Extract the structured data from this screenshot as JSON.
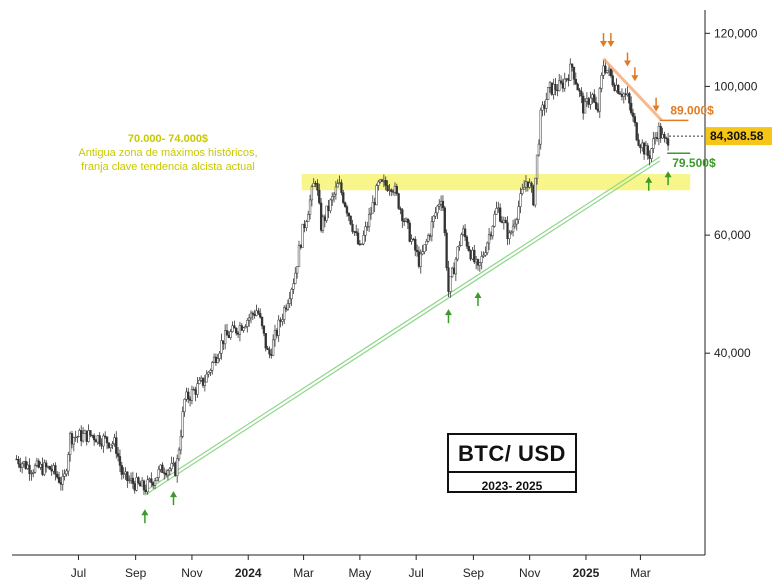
{
  "chart_data": {
    "type": "candlestick",
    "title": "BTC/ USD",
    "subtitle": "2023- 2025",
    "y_scale": "log",
    "ylim": [
      20000,
      130000
    ],
    "y_ticks": [
      {
        "value": 120000,
        "label": "120,000"
      },
      {
        "value": 100000,
        "label": "100,000"
      },
      {
        "value": 60000,
        "label": "60,000"
      },
      {
        "value": 40000,
        "label": "40,000"
      }
    ],
    "x_ticks": [
      {
        "date": "2023-07-01",
        "label": "Jul",
        "bold": false
      },
      {
        "date": "2023-09-01",
        "label": "Sep",
        "bold": false
      },
      {
        "date": "2023-11-01",
        "label": "Nov",
        "bold": false
      },
      {
        "date": "2024-01-01",
        "label": "2024",
        "bold": true
      },
      {
        "date": "2024-03-01",
        "label": "Mar",
        "bold": false
      },
      {
        "date": "2024-05-01",
        "label": "May",
        "bold": false
      },
      {
        "date": "2024-07-01",
        "label": "Jul",
        "bold": false
      },
      {
        "date": "2024-09-01",
        "label": "Sep",
        "bold": false
      },
      {
        "date": "2024-11-01",
        "label": "Nov",
        "bold": false
      },
      {
        "date": "2025-01-01",
        "label": "2025",
        "bold": true
      },
      {
        "date": "2025-03-01",
        "label": "Mar",
        "bold": false
      }
    ],
    "x_range": [
      "2023-04-20",
      "2025-05-10"
    ],
    "price_path": [
      [
        "2023-04-25",
        27800
      ],
      [
        "2023-05-10",
        27000
      ],
      [
        "2023-06-01",
        26900
      ],
      [
        "2023-06-15",
        25500
      ],
      [
        "2023-06-22",
        30000
      ],
      [
        "2023-07-15",
        30200
      ],
      [
        "2023-08-10",
        29300
      ],
      [
        "2023-08-18",
        26100
      ],
      [
        "2023-09-11",
        25100
      ],
      [
        "2023-10-01",
        27000
      ],
      [
        "2023-10-15",
        26800
      ],
      [
        "2023-10-24",
        34000
      ],
      [
        "2023-11-15",
        36500
      ],
      [
        "2023-12-05",
        42000
      ],
      [
        "2023-12-20",
        43500
      ],
      [
        "2024-01-11",
        46500
      ],
      [
        "2024-01-23",
        39500
      ],
      [
        "2024-02-10",
        47000
      ],
      [
        "2024-02-20",
        52000
      ],
      [
        "2024-02-28",
        60000
      ],
      [
        "2024-03-14",
        73000
      ],
      [
        "2024-03-20",
        62000
      ],
      [
        "2024-04-08",
        71500
      ],
      [
        "2024-04-20",
        64000
      ],
      [
        "2024-05-01",
        57000
      ],
      [
        "2024-05-21",
        71000
      ],
      [
        "2024-06-05",
        71500
      ],
      [
        "2024-06-24",
        60000
      ],
      [
        "2024-07-05",
        54500
      ],
      [
        "2024-07-29",
        69500
      ],
      [
        "2024-08-05",
        49500
      ],
      [
        "2024-08-20",
        61000
      ],
      [
        "2024-09-06",
        53000
      ],
      [
        "2024-09-27",
        66000
      ],
      [
        "2024-10-10",
        59500
      ],
      [
        "2024-10-29",
        73000
      ],
      [
        "2024-11-05",
        68000
      ],
      [
        "2024-11-13",
        90000
      ],
      [
        "2024-11-22",
        99000
      ],
      [
        "2024-12-05",
        100000
      ],
      [
        "2024-12-17",
        107000
      ],
      [
        "2024-12-30",
        92000
      ],
      [
        "2025-01-07",
        98000
      ],
      [
        "2025-01-13",
        90000
      ],
      [
        "2025-01-20",
        108000
      ],
      [
        "2025-02-01",
        101000
      ],
      [
        "2025-02-15",
        96000
      ],
      [
        "2025-02-26",
        84000
      ],
      [
        "2025-03-10",
        78500
      ],
      [
        "2025-03-20",
        86500
      ],
      [
        "2025-03-28",
        82000
      ],
      [
        "2025-04-01",
        84300
      ]
    ],
    "last_price": {
      "value": 84308.58,
      "label": "84,308.58"
    },
    "resistance": {
      "value": 89000,
      "label": "89.000$",
      "from": "2025-03-22",
      "to": "2025-04-22"
    },
    "support": {
      "value": 79500,
      "label": "79.500$",
      "from": "2025-03-30",
      "to": "2025-04-24"
    },
    "zone": {
      "low": 70000,
      "high": 74000,
      "from": "2024-02-28",
      "to": "2025-04-24",
      "title": "70.000- 74.000$",
      "note_line1": "Antigua zona de máximos históricos,",
      "note_line2": "franja clave tendencia alcista actual"
    },
    "trendline": {
      "from": [
        "2023-09-11",
        24900
      ],
      "to": [
        "2025-03-22",
        78500
      ],
      "color": "#8fd68a"
    },
    "downtrend": {
      "from": [
        "2025-01-20",
        110000
      ],
      "to": [
        "2025-03-24",
        89000
      ],
      "color": "#f4a36a"
    },
    "down_arrows": [
      "2025-01-20",
      "2025-01-28",
      "2025-02-15",
      "2025-02-23",
      "2025-03-18"
    ],
    "up_arrows": [
      [
        "2023-09-11",
        24900
      ],
      [
        "2023-10-12",
        26500
      ],
      [
        "2024-08-05",
        49500
      ],
      [
        "2024-09-06",
        52500
      ],
      [
        "2025-03-10",
        78000
      ],
      [
        "2025-03-31",
        79500
      ]
    ],
    "colors": {
      "zone": "#f8f58a",
      "resistance": "#e07b24",
      "support": "#3a9a2a",
      "price_box": "#f5c518",
      "candle": "#333333"
    }
  },
  "title_box": {
    "title": "BTC/ USD",
    "subtitle": "2023- 2025"
  }
}
